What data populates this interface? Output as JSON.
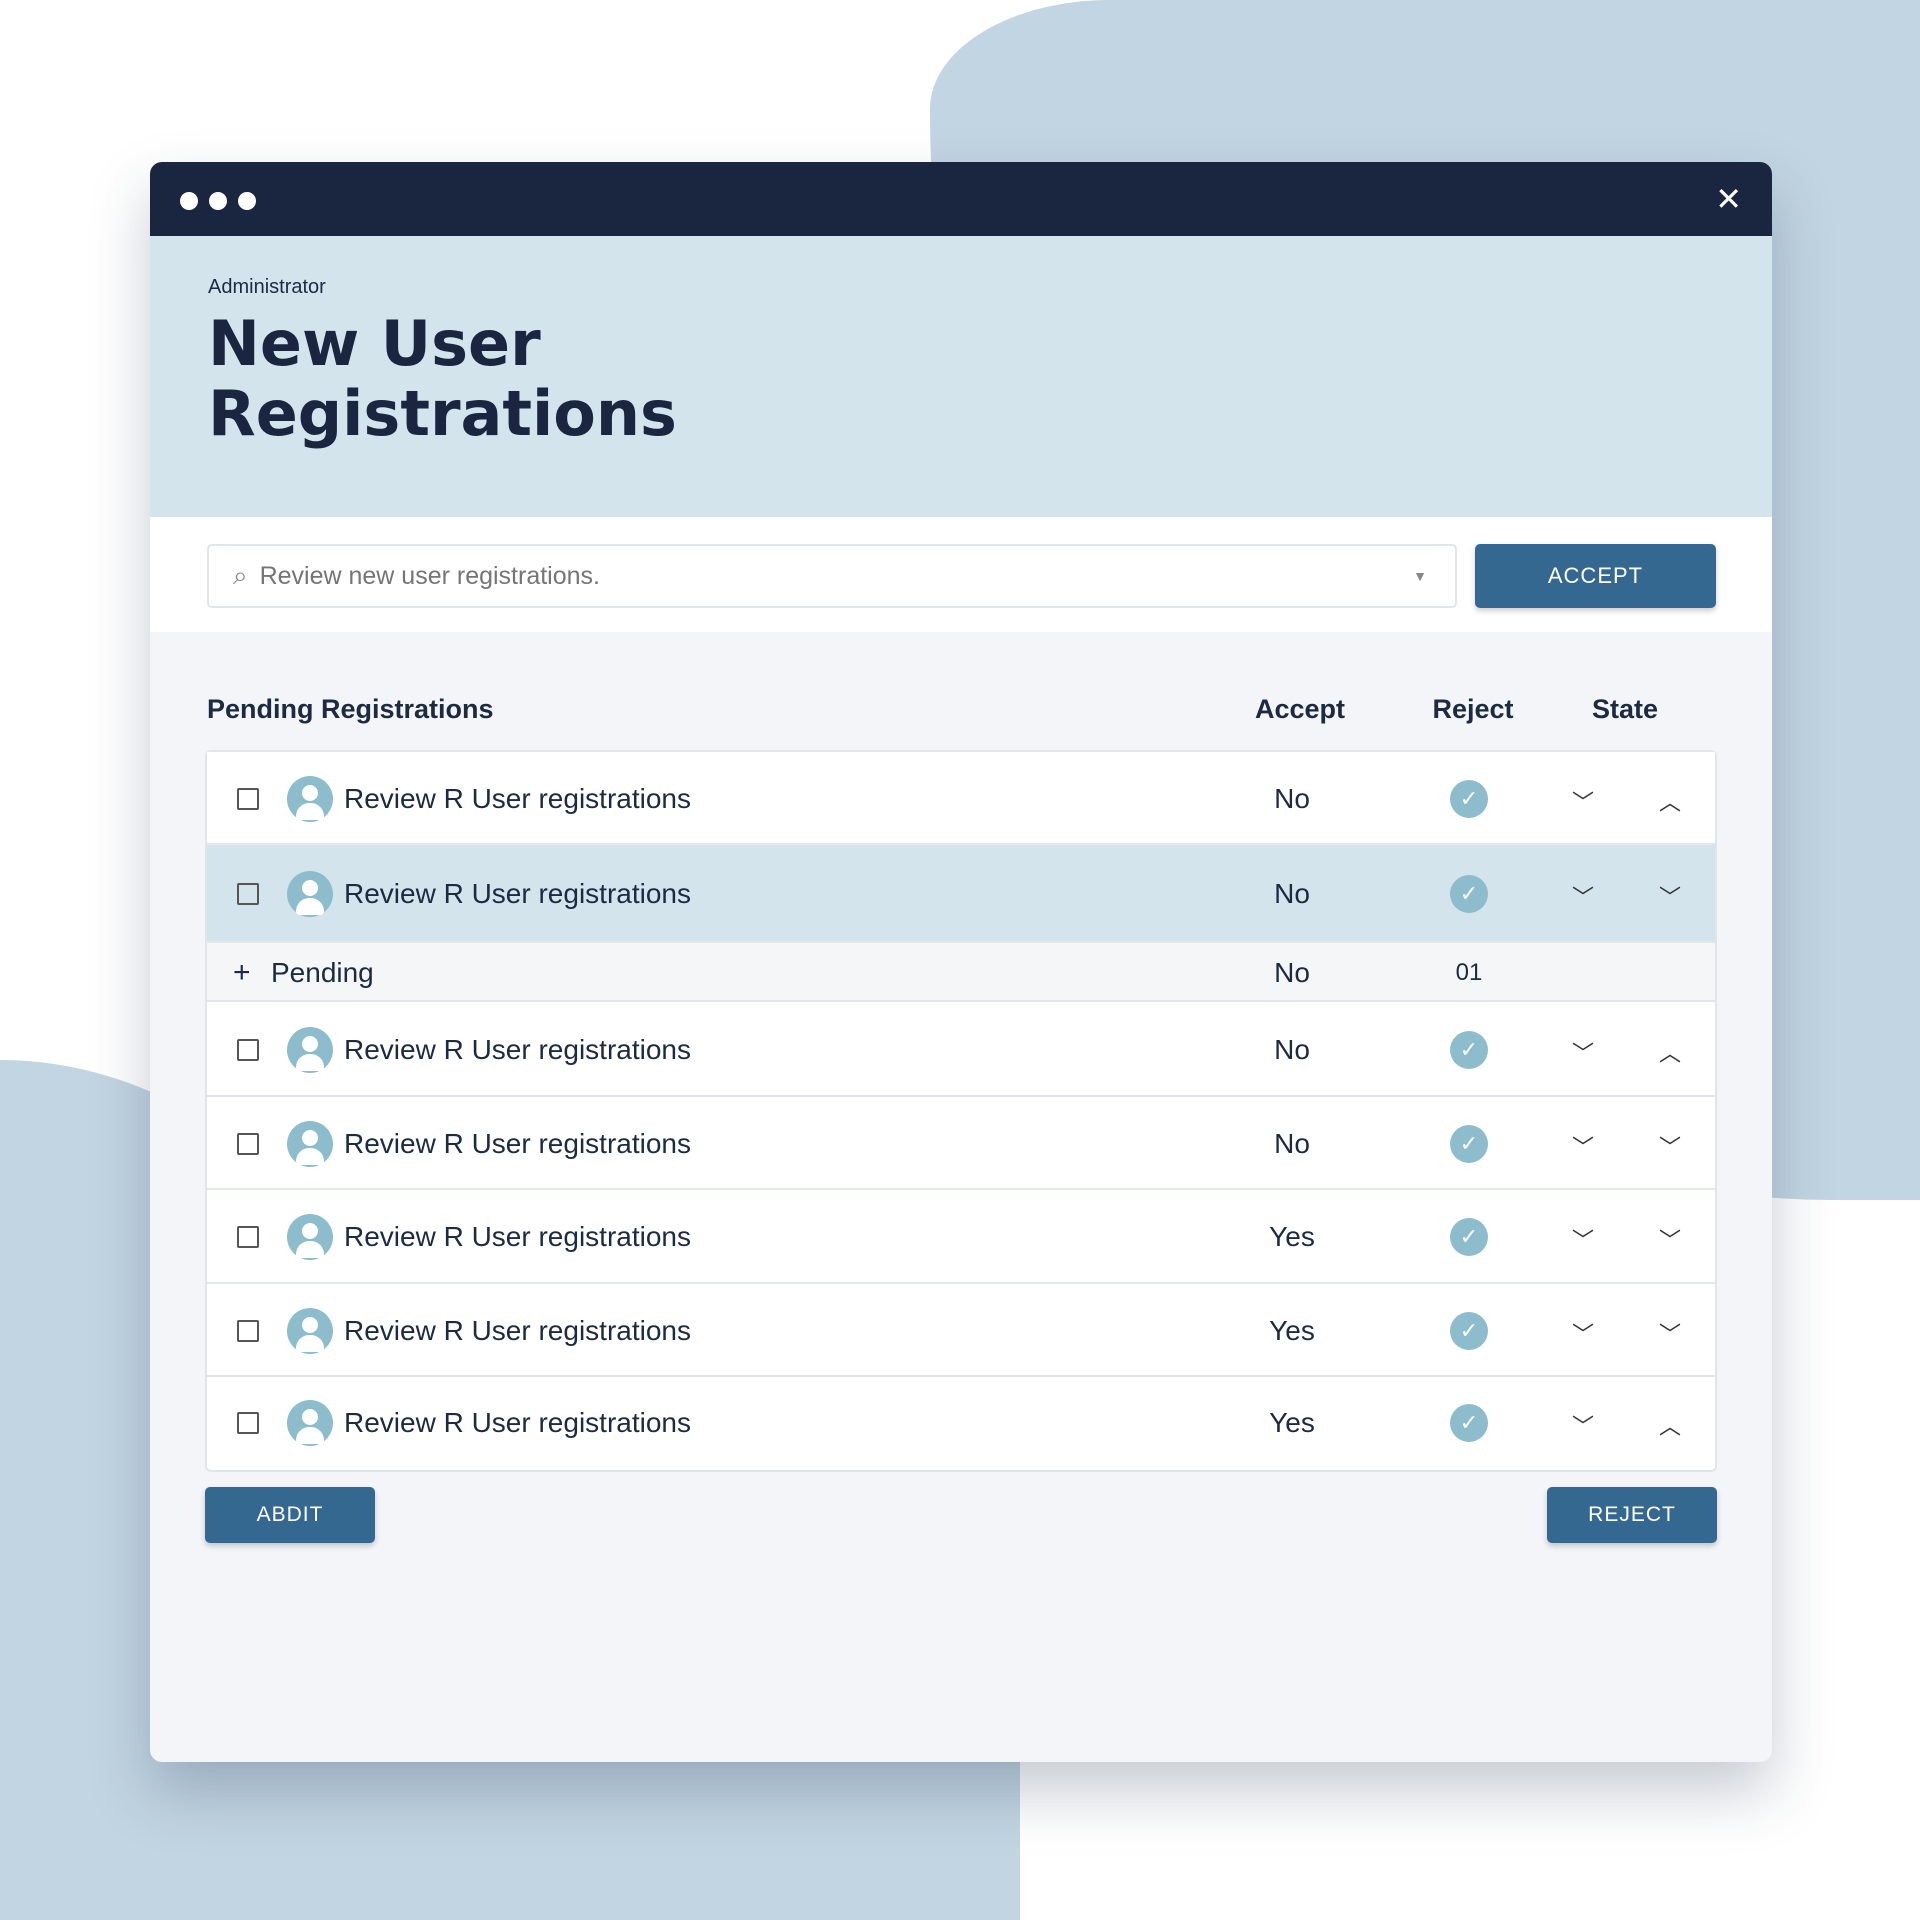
{
  "window": {
    "close_icon": "close-icon"
  },
  "header": {
    "eyebrow": "Administrator",
    "title_line1": "New User",
    "title_line2": "Registrations"
  },
  "search": {
    "placeholder": "Review new user registrations.",
    "accept_label": "ACCEPT"
  },
  "table": {
    "title": "Pending Registrations",
    "columns": [
      "Accept",
      "Reject",
      "State"
    ],
    "rows": [
      {
        "name": "Review R User registrations",
        "accept": "No",
        "state1": "down",
        "state2": "up"
      },
      {
        "name": "Review R User registrations",
        "accept": "No",
        "state1": "down",
        "state2": "down",
        "highlighted": true
      },
      {
        "pending": true,
        "name": "Pending",
        "accept": "No",
        "reject": "01"
      },
      {
        "name": "Review R User registrations",
        "accept": "No",
        "state1": "down",
        "state2": "up"
      },
      {
        "name": "Review R User registrations",
        "accept": "No",
        "state1": "down",
        "state2": "down"
      },
      {
        "name": "Review R User registrations",
        "accept": "Yes",
        "state1": "down",
        "state2": "down"
      },
      {
        "name": "Review R User registrations",
        "accept": "Yes",
        "state1": "down",
        "state2": "down"
      },
      {
        "name": "Review R User registrations",
        "accept": "Yes",
        "state1": "down",
        "state2": "up"
      }
    ]
  },
  "footer": {
    "left_button": "ABDIT",
    "right_button": "REJECT"
  },
  "colors": {
    "titlebar": "#1a2540",
    "hero": "#d3e4ec",
    "button": "#356890",
    "check": "#8dbccc",
    "background_blob": "#c2d5e2"
  }
}
